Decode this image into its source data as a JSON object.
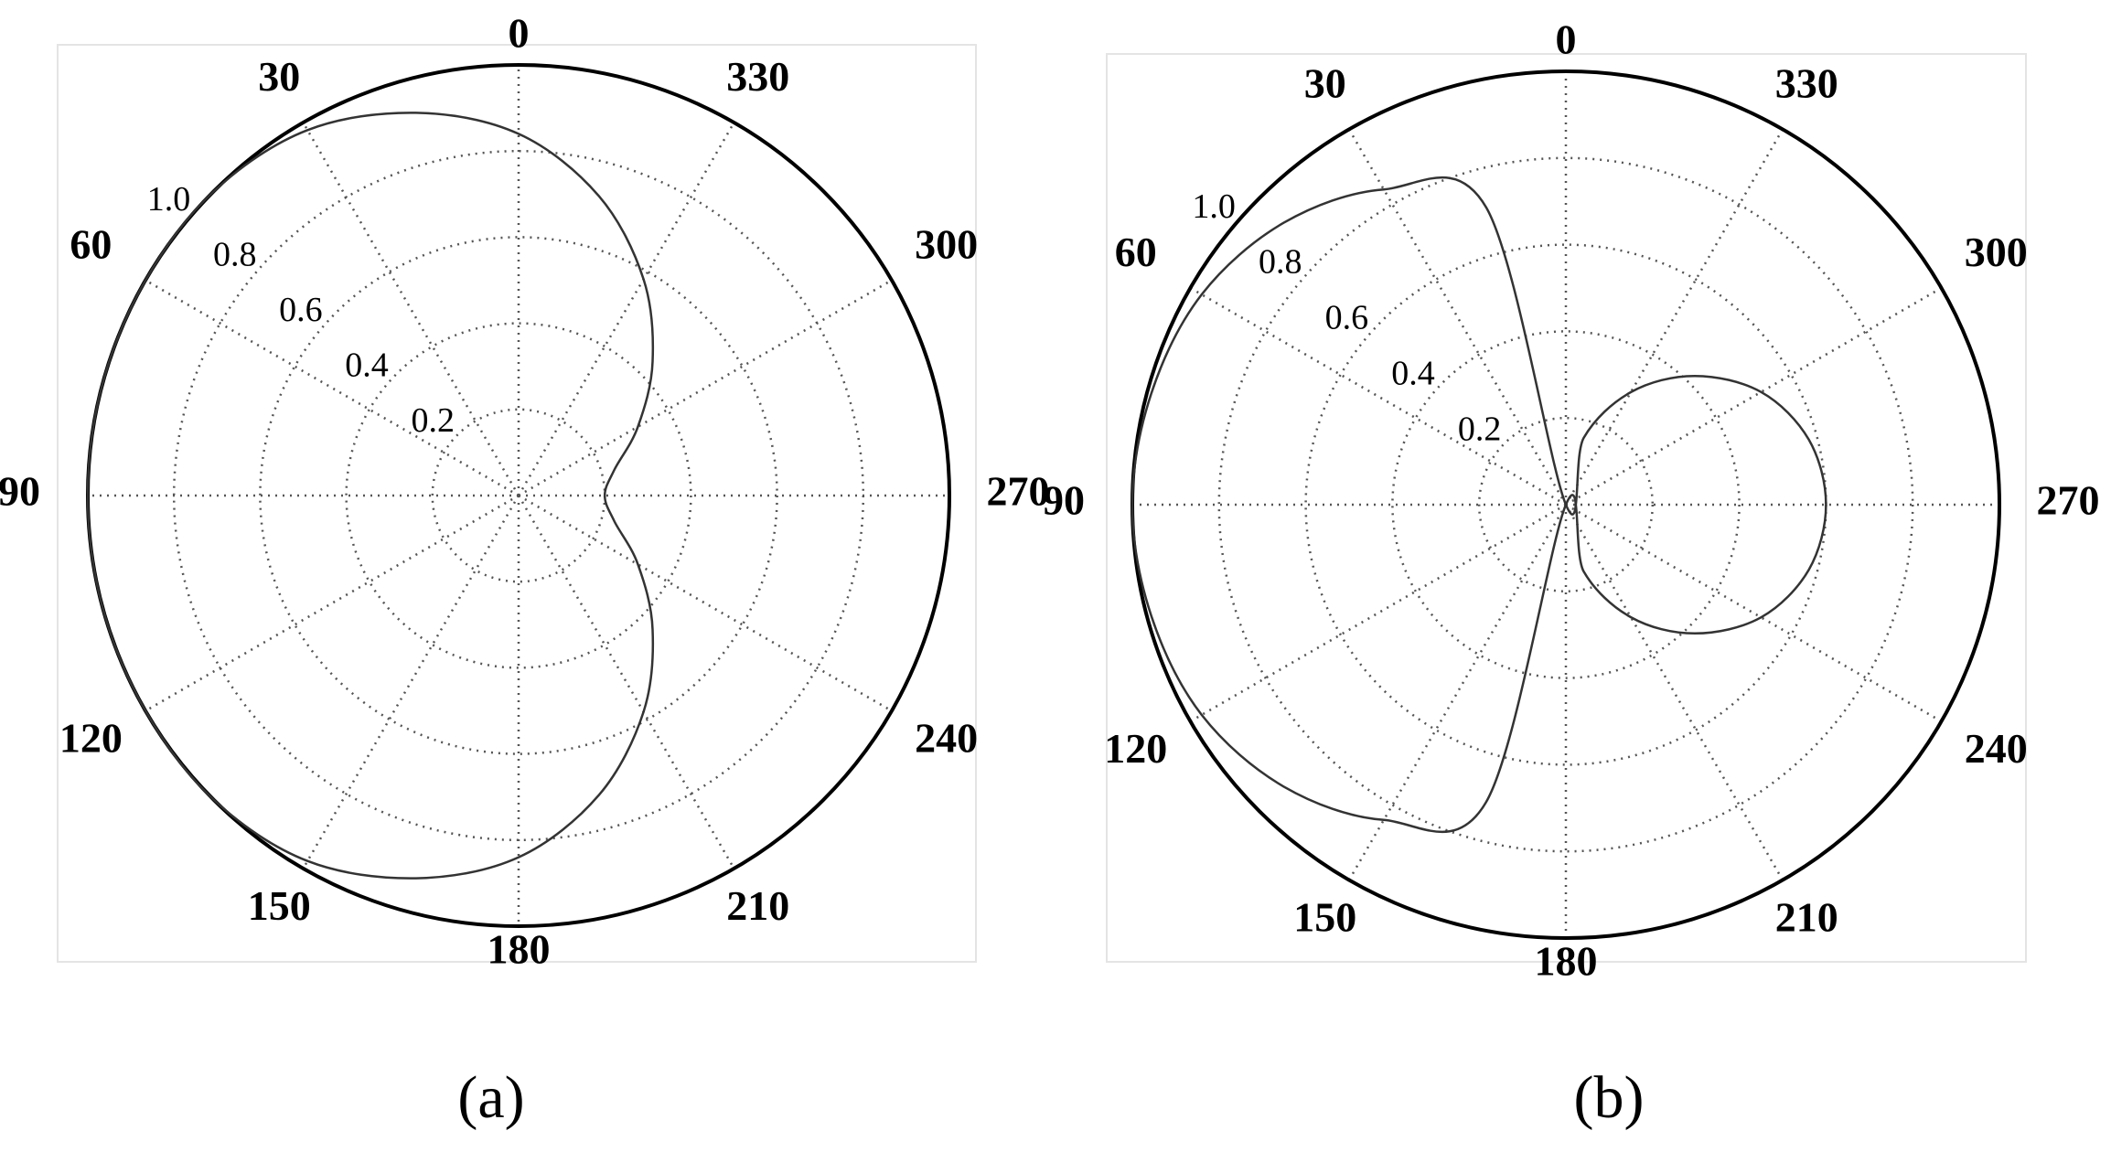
{
  "chart_data": [
    {
      "type": "polar",
      "caption": "(a)",
      "color": "#333333",
      "x": [
        0,
        15,
        30,
        45,
        60,
        75,
        90,
        105,
        120,
        135,
        150,
        165,
        180,
        195,
        210,
        225,
        240,
        255,
        270,
        285,
        300,
        315,
        330,
        345
      ],
      "values": [
        0.84,
        0.92,
        0.98,
        1.0,
        1.0,
        1.0,
        1.0,
        1.0,
        1.0,
        1.0,
        0.98,
        0.92,
        0.84,
        0.72,
        0.58,
        0.44,
        0.32,
        0.23,
        0.2,
        0.23,
        0.32,
        0.44,
        0.58,
        0.72
      ],
      "rlim": [
        0,
        1
      ],
      "rticks": [
        0.2,
        0.4,
        0.6,
        0.8,
        {
          "value": 1,
          "label": "1.0"
        }
      ],
      "thetaticks": [
        0,
        30,
        60,
        90,
        120,
        150,
        180,
        210,
        240,
        270,
        300,
        330
      ],
      "grid": true
    },
    {
      "type": "polar",
      "caption": "(b)",
      "color": "#333333",
      "x": [
        0,
        15,
        30,
        45,
        60,
        75,
        90,
        105,
        120,
        135,
        150,
        165,
        180,
        195,
        210,
        225,
        240,
        255,
        270,
        285,
        300,
        315,
        330,
        345
      ],
      "values": [
        0,
        0.71,
        0.84,
        0.92,
        0.97,
        0.99,
        1,
        0.99,
        0.97,
        0.92,
        0.84,
        0.71,
        0,
        0.16,
        0.3,
        0.42,
        0.52,
        0.58,
        0.6,
        0.58,
        0.52,
        0.42,
        0.3,
        0.16
      ],
      "rlim": [
        0,
        1
      ],
      "rticks": [
        0.2,
        0.4,
        0.6,
        0.8,
        {
          "value": 1,
          "label": "1.0"
        }
      ],
      "thetaticks": [
        0,
        30,
        60,
        90,
        120,
        150,
        180,
        210,
        240,
        270,
        300,
        330
      ],
      "grid": true
    }
  ]
}
